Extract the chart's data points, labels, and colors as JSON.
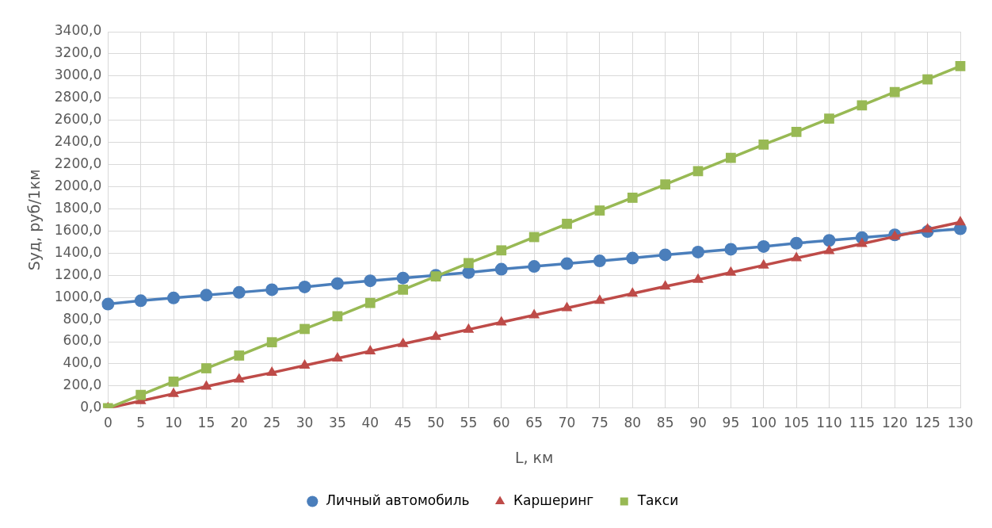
{
  "chart_data": {
    "type": "line",
    "xlabel": "L, км",
    "ylabel": "Sуд, руб/1км",
    "categories": [
      "0",
      "5",
      "10",
      "15",
      "20",
      "25",
      "30",
      "35",
      "40",
      "45",
      "50",
      "55",
      "60",
      "65",
      "70",
      "75",
      "80",
      "85",
      "90",
      "95",
      "100",
      "105",
      "110",
      "115",
      "120",
      "125",
      "130"
    ],
    "series": [
      {
        "name": "Личный автомобиль",
        "color": "#4a7ebb",
        "marker": "circle",
        "values": [
          940,
          970,
          995,
          1020,
          1045,
          1070,
          1095,
          1125,
          1150,
          1175,
          1200,
          1225,
          1255,
          1280,
          1305,
          1330,
          1355,
          1385,
          1410,
          1435,
          1460,
          1490,
          1515,
          1540,
          1565,
          1595,
          1620
        ]
      },
      {
        "name": "Каршеринг",
        "color": "#be4b48",
        "marker": "triangle",
        "values": [
          0,
          65,
          130,
          195,
          260,
          320,
          385,
          450,
          515,
          580,
          645,
          710,
          775,
          840,
          905,
          970,
          1035,
          1100,
          1160,
          1225,
          1290,
          1355,
          1420,
          1485,
          1550,
          1615,
          1680
        ]
      },
      {
        "name": "Такси",
        "color": "#98b954",
        "marker": "square",
        "values": [
          0,
          120,
          240,
          360,
          475,
          595,
          715,
          830,
          950,
          1070,
          1190,
          1310,
          1425,
          1545,
          1665,
          1785,
          1900,
          2020,
          2140,
          2260,
          2380,
          2495,
          2615,
          2735,
          2855,
          2970,
          3090
        ]
      }
    ],
    "ylim": [
      0,
      3400
    ],
    "yticks": [
      {
        "value": 0,
        "label": "0,0"
      },
      {
        "value": 200,
        "label": "200,0"
      },
      {
        "value": 400,
        "label": "400,0"
      },
      {
        "value": 600,
        "label": "600,0"
      },
      {
        "value": 800,
        "label": "800,0"
      },
      {
        "value": 1000,
        "label": "1000,0"
      },
      {
        "value": 1200,
        "label": "1200,0"
      },
      {
        "value": 1400,
        "label": "1400,0"
      },
      {
        "value": 1600,
        "label": "1600,0"
      },
      {
        "value": 1800,
        "label": "1800,0"
      },
      {
        "value": 2000,
        "label": "2000,0"
      },
      {
        "value": 2200,
        "label": "2200,0"
      },
      {
        "value": 2400,
        "label": "2400,0"
      },
      {
        "value": 2600,
        "label": "2600,0"
      },
      {
        "value": 2800,
        "label": "2800,0"
      },
      {
        "value": 3000,
        "label": "3000,0"
      },
      {
        "value": 3200,
        "label": "3200,0"
      },
      {
        "value": 3400,
        "label": "3400,0"
      }
    ],
    "grid": true,
    "legend": "bottom",
    "line_style": "solid"
  }
}
